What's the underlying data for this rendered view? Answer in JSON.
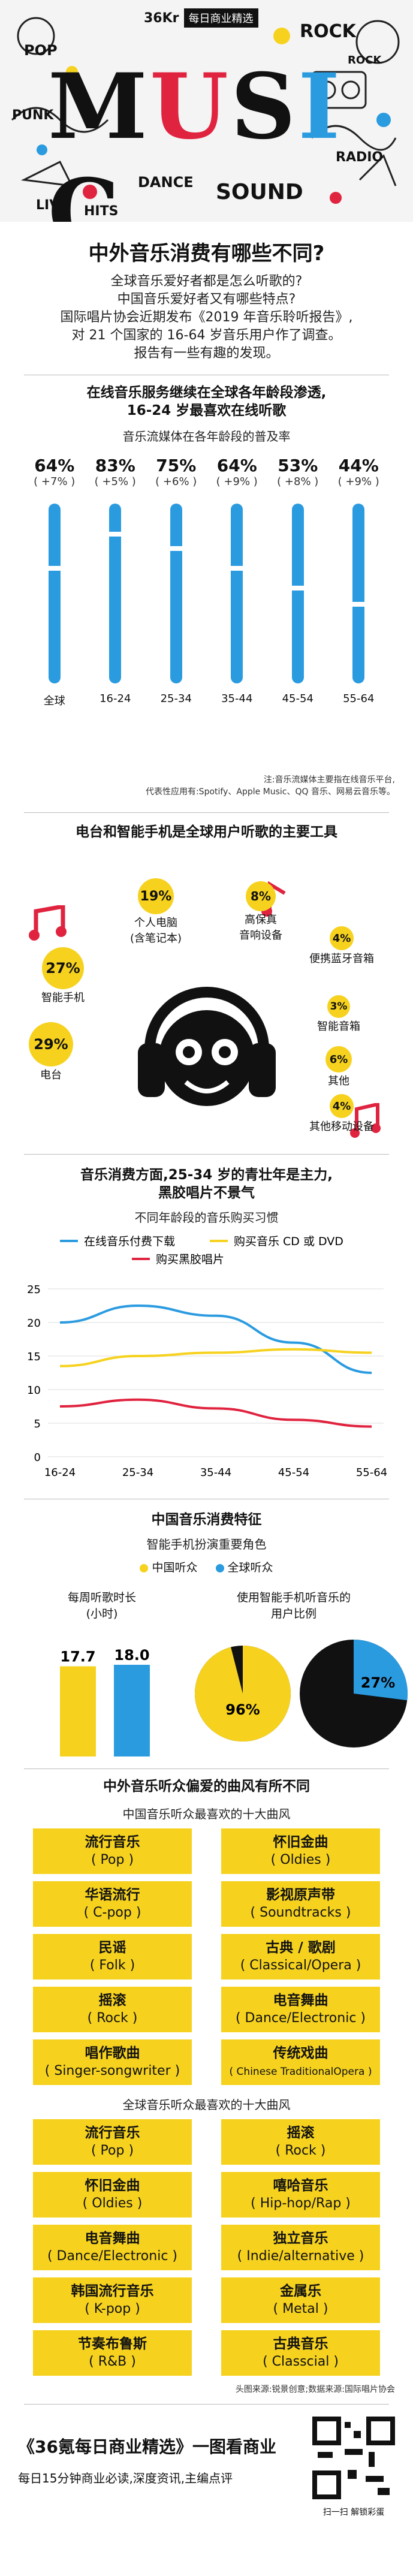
{
  "header": {
    "brand": "36Kr",
    "tag": "每日商业精选",
    "collage_words": [
      "MUSIC",
      "ROCK",
      "POP",
      "DANCE",
      "SOUND",
      "LIVE",
      "HITS",
      "PUNK",
      "RADIO",
      "ROCK"
    ]
  },
  "title": "中外音乐消费有哪些不同?",
  "intro": [
    "全球音乐爱好者都是怎么听歌的?",
    "中国音乐爱好者又有哪些特点?",
    "国际唱片协会近期发布《2019 年音乐聆听报告》,",
    "对 21 个国家的 16-64 岁音乐用户作了调查。",
    "报告有一些有趣的发现。"
  ],
  "section1": {
    "heading": [
      "在线音乐服务继续在全球各年龄段渗透,",
      "16-24 岁最喜欢在线听歌"
    ],
    "subheading": "音乐流媒体在各年龄段的普及率",
    "note": [
      "注:音乐流媒体主要指在线音乐平台,",
      "代表性应用有:Spotify、Apple Music、QQ 音乐、网易云音乐等。"
    ]
  },
  "section2": {
    "heading": "电台和智能手机是全球用户听歌的主要工具",
    "left": [
      {
        "pct": "19%",
        "label": "个人电脑\n(含笔记本)"
      },
      {
        "pct": "27%",
        "label": "智能手机"
      },
      {
        "pct": "29%",
        "label": "电台"
      }
    ],
    "right": [
      {
        "pct": "8%",
        "label": "高保真\n音响设备"
      },
      {
        "pct": "4%",
        "label": "便携蓝牙音箱"
      },
      {
        "pct": "3%",
        "label": "智能音箱"
      },
      {
        "pct": "6%",
        "label": "其他"
      },
      {
        "pct": "4%",
        "label": "其他移动设备"
      }
    ]
  },
  "section3": {
    "heading": [
      "音乐消费方面,25-34 岁的青壮年是主力,",
      "黑胶唱片不景气"
    ],
    "subheading": "不同年龄段的音乐购买习惯"
  },
  "section4": {
    "heading": "中国音乐消费特征",
    "subheading": "智能手机扮演重要角色",
    "legend": [
      "中国听众",
      "全球听众"
    ],
    "weekly_label": [
      "每周听歌时长",
      "(小时)"
    ],
    "smartphone_label": [
      "使用智能手机听音乐的",
      "用户比例"
    ],
    "weekly": {
      "china": "17.7",
      "global": "18.0",
      "china_v": 17.7,
      "global_v": 18.0
    },
    "pie": {
      "china": "96%",
      "global": "27%",
      "china_v": 96,
      "global_v": 27
    }
  },
  "section5": {
    "heading": "中外音乐听众偏爱的曲风有所不同",
    "china_title": "中国音乐听众最喜欢的十大曲风",
    "china": [
      [
        "流行音乐",
        "( Pop )"
      ],
      [
        "怀旧金曲",
        "( Oldies )"
      ],
      [
        "华语流行",
        "( C-pop )"
      ],
      [
        "影视原声带",
        "( Soundtracks )"
      ],
      [
        "民谣",
        "( Folk )"
      ],
      [
        "古典 / 歌剧",
        "( Classical/Opera )"
      ],
      [
        "摇滚",
        "( Rock )"
      ],
      [
        "电音舞曲",
        "( Dance/Electronic )"
      ],
      [
        "唱作歌曲",
        "( Singer-songwriter )"
      ],
      [
        "传统戏曲",
        "( Chinese TraditionalOpera )"
      ]
    ],
    "global_title": "全球音乐听众最喜欢的十大曲风",
    "global": [
      [
        "流行音乐",
        "( Pop )"
      ],
      [
        "摇滚",
        "( Rock )"
      ],
      [
        "怀旧金曲",
        "( Oldies )"
      ],
      [
        "嘻哈音乐",
        "( Hip-hop/Rap )"
      ],
      [
        "电音舞曲",
        "( Dance/Electronic )"
      ],
      [
        "独立音乐",
        "( Indie/alternative )"
      ],
      [
        "韩国流行音乐",
        "( K-pop )"
      ],
      [
        "金属乐",
        "( Metal )"
      ],
      [
        "节奏布鲁斯",
        "( R&B )"
      ],
      [
        "古典音乐",
        "( Classcial )"
      ]
    ],
    "source": "头图来源:锐景创意;数据来源:国际唱片协会"
  },
  "footer": {
    "title": "《36氪每日商业精选》一图看商业",
    "subtitle": "每日15分钟商业必读,深度资讯,主编点评",
    "qr_caption": "扫一扫 解锁彩蛋"
  },
  "chart_data": [
    {
      "type": "bar",
      "categories": [
        "全球",
        "16-24",
        "25-34",
        "35-44",
        "45-54",
        "55-64"
      ],
      "values": [
        64,
        83,
        75,
        64,
        53,
        44
      ],
      "value_labels": [
        "64%",
        "83%",
        "75%",
        "64%",
        "53%",
        "44%"
      ],
      "changes": [
        "( +7% )",
        "( +5% )",
        "( +6% )",
        "( +9% )",
        "( +8% )",
        "( +9% )"
      ],
      "ylim": [
        0,
        100
      ]
    },
    {
      "type": "line",
      "categories": [
        "16-24",
        "25-34",
        "35-44",
        "45-54",
        "55-64"
      ],
      "yticks": [
        "0",
        "5",
        "10",
        "15",
        "20",
        "25"
      ],
      "ylim": [
        0,
        25
      ],
      "grid": true,
      "series": [
        {
          "name": "在线音乐付费下载",
          "color": "#2b9be0",
          "values": [
            20,
            22.5,
            21,
            17,
            12.5
          ]
        },
        {
          "name": "购买音乐 CD 或 DVD",
          "color": "#f6d21f",
          "values": [
            13.5,
            15,
            15.5,
            16,
            15.5
          ]
        },
        {
          "name": "购买黑胶唱片",
          "color": "#e0233f",
          "values": [
            7.5,
            8.5,
            7.2,
            5.5,
            4.5
          ]
        }
      ]
    }
  ]
}
